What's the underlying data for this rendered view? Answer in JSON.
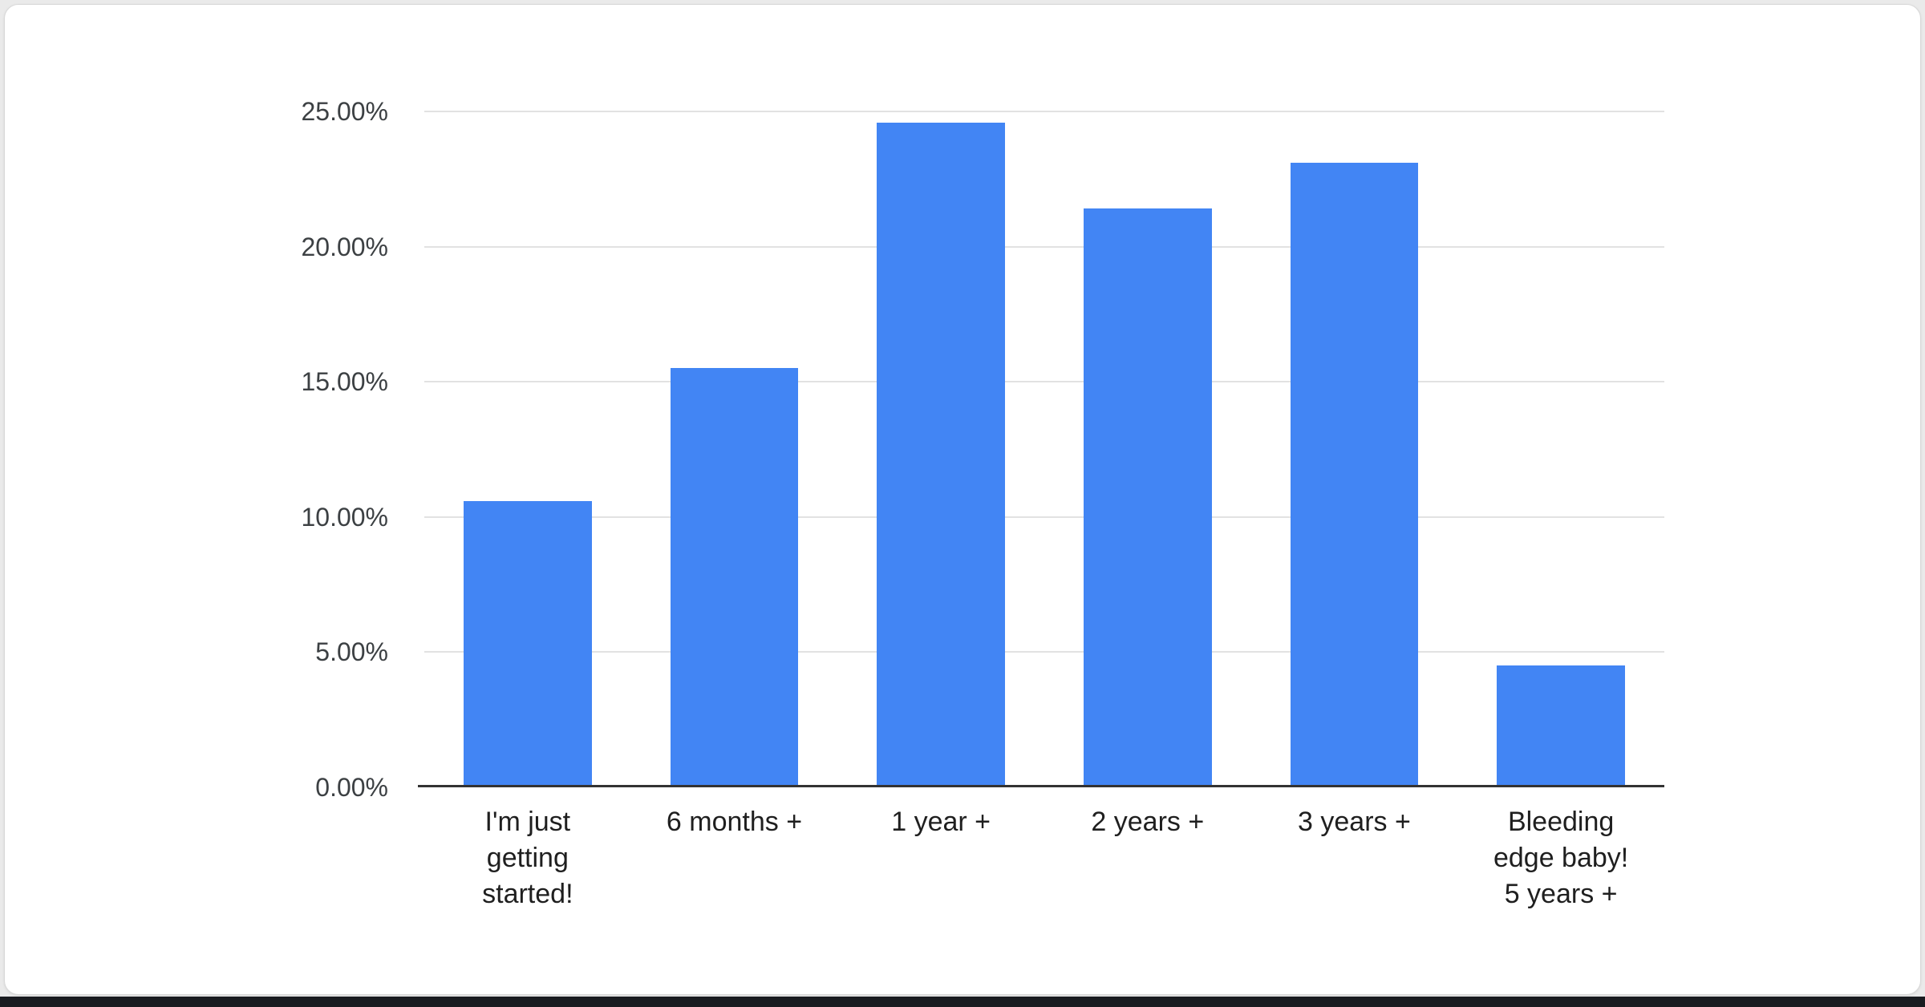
{
  "page": {
    "background_color": "#eaeaea",
    "card_background": "#ffffff",
    "footer_bar_color": "#191b20"
  },
  "chart_data": {
    "type": "bar",
    "title": "",
    "xlabel": "",
    "ylabel": "",
    "legend": "none",
    "grid": true,
    "bar_color": "#4285f4",
    "unit": "%",
    "ylim": [
      0,
      25
    ],
    "categories": [
      "I'm just getting started!",
      "6 months +",
      "1 year +",
      "2 years +",
      "3 years +",
      "Bleeding edge baby! 5 years +"
    ],
    "category_lines": [
      [
        "I'm just",
        "getting",
        "started!"
      ],
      [
        "6 months +"
      ],
      [
        "1 year +"
      ],
      [
        "2 years +"
      ],
      [
        "3 years +"
      ],
      [
        "Bleeding",
        "edge baby!",
        "5 years +"
      ]
    ],
    "values": [
      10.6,
      15.5,
      24.6,
      21.4,
      23.1,
      4.5
    ],
    "yticks": [
      {
        "value": 0,
        "label": "0.00%"
      },
      {
        "value": 5,
        "label": "5.00%"
      },
      {
        "value": 10,
        "label": "10.00%"
      },
      {
        "value": 15,
        "label": "15.00%"
      },
      {
        "value": 20,
        "label": "20.00%"
      },
      {
        "value": 25,
        "label": "25.00%"
      }
    ]
  }
}
